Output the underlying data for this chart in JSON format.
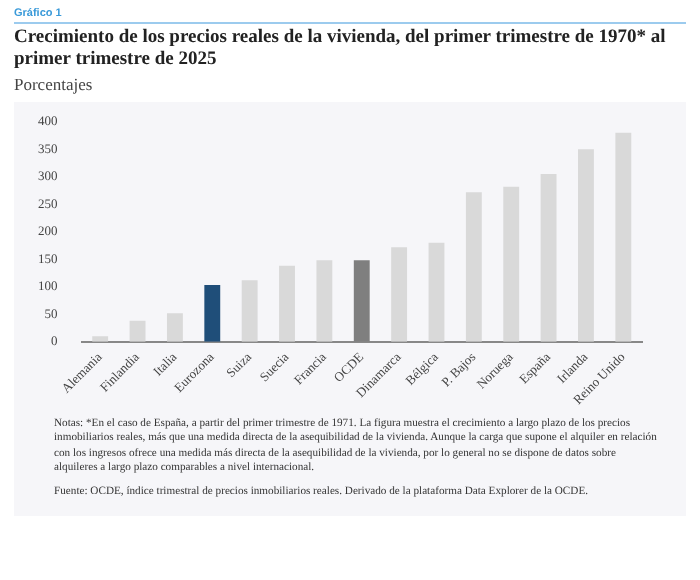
{
  "chart_data": {
    "type": "bar",
    "title": "Crecimiento de los precios reales de la vivienda, del primer trimestre de 1970* al primer trimestre de 2025",
    "subtitle": "Porcentajes",
    "annotations": [
      "Gráfico 1",
      "Notas: *En el caso de España, a partir del primer trimestre de 1971. La figura muestra el crecimiento a largo plazo de los precios inmobiliarios reales, más que una medida directa de la asequibilidad de la vivienda. Aunque la carga que supone el alquiler en relación con los ingresos ofrece una medida más directa de la asequibilidad de la vivienda, por lo general no se dispone de datos sobre alquileres a largo plazo comparables a nivel internacional.",
      "Fuente: OCDE, índice trimestral de precios inmobiliarios reales. Derivado de la plataforma Data Explorer de la OCDE."
    ],
    "categories": [
      "Alemania",
      "Finlandia",
      "Italia",
      "Eurozona",
      "Suiza",
      "Suecia",
      "Francia",
      "OCDE",
      "Dinamarca",
      "Bélgica",
      "P. Bajos",
      "Noruega",
      "España",
      "Irlanda",
      "Reino Unido"
    ],
    "values": [
      10,
      38,
      52,
      103,
      112,
      138,
      148,
      148,
      172,
      180,
      272,
      282,
      305,
      350,
      380
    ],
    "colors": [
      "#d9d9d9",
      "#d9d9d9",
      "#d9d9d9",
      "#1f4e79",
      "#d9d9d9",
      "#d9d9d9",
      "#d9d9d9",
      "#7f7f7f",
      "#d9d9d9",
      "#d9d9d9",
      "#d9d9d9",
      "#d9d9d9",
      "#d9d9d9",
      "#d9d9d9",
      "#d9d9d9"
    ],
    "ylim": [
      0,
      400
    ],
    "yticks": [
      0,
      50,
      100,
      150,
      200,
      250,
      300,
      350,
      400
    ],
    "grid": false,
    "legend": false
  }
}
